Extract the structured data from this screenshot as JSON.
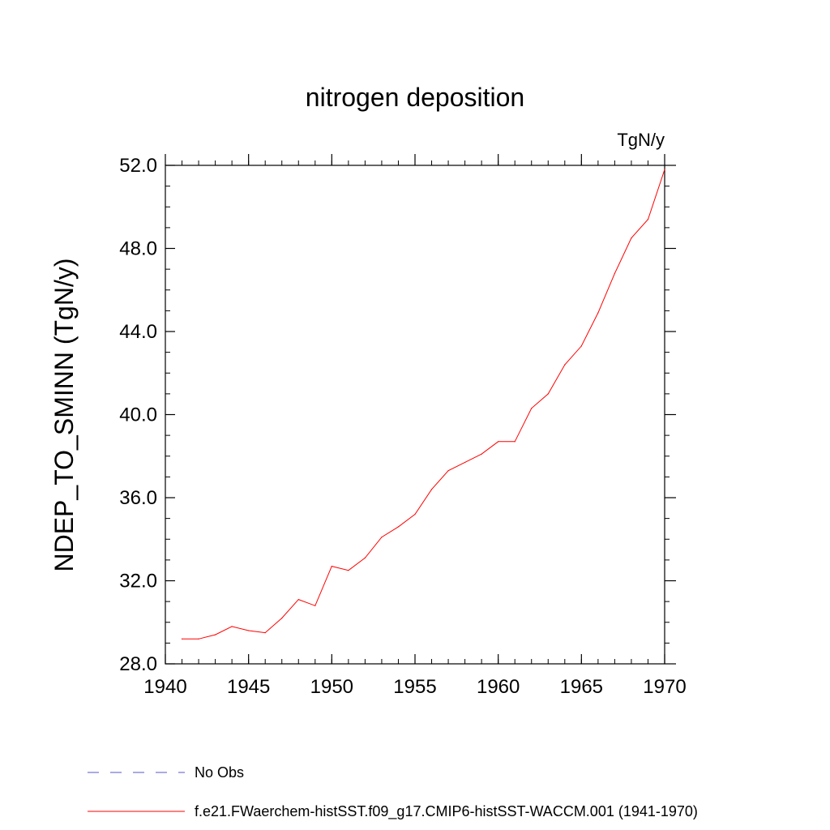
{
  "chart_data": {
    "type": "line",
    "title": "nitrogen deposition",
    "units": "TgN/y",
    "ylabel": "NDEP_TO_SMINN  (TgN/y)",
    "xlabel": "",
    "xlim": [
      1940,
      1970
    ],
    "ylim": [
      28.0,
      52.0
    ],
    "x_ticks": [
      "1940",
      "1945",
      "1950",
      "1955",
      "1960",
      "1965",
      "1970"
    ],
    "y_ticks": [
      "28.0",
      "32.0",
      "36.0",
      "40.0",
      "44.0",
      "48.0",
      "52.0"
    ],
    "x_minor_step": 1,
    "y_minor_step": 1,
    "grid": false,
    "series": [
      {
        "name": "f.e21.FWaerchem-histSST.f09_g17.CMIP6-histSST-WACCM.001 (1941-1970)",
        "color": "#ff0000",
        "dash": "solid",
        "x": [
          1941,
          1942,
          1943,
          1944,
          1945,
          1946,
          1947,
          1948,
          1949,
          1950,
          1951,
          1952,
          1953,
          1954,
          1955,
          1956,
          1957,
          1958,
          1959,
          1960,
          1961,
          1962,
          1963,
          1964,
          1965,
          1966,
          1967,
          1968,
          1969,
          1970
        ],
        "y": [
          29.2,
          29.2,
          29.4,
          29.8,
          29.6,
          29.5,
          30.2,
          31.1,
          30.8,
          32.7,
          32.5,
          33.1,
          34.1,
          34.6,
          35.2,
          36.4,
          37.3,
          37.7,
          38.1,
          38.7,
          38.7,
          40.3,
          41.0,
          42.4,
          43.3,
          44.9,
          46.8,
          48.5,
          49.4,
          51.8
        ]
      }
    ],
    "legend": {
      "placement": "bottom",
      "entries": [
        {
          "label": "No Obs",
          "color": "#5555cc",
          "dash": "dashed"
        },
        {
          "label": "f.e21.FWaerchem-histSST.f09_g17.CMIP6-histSST-WACCM.001 (1941-1970)",
          "color": "#ff0000",
          "dash": "solid"
        }
      ]
    }
  }
}
